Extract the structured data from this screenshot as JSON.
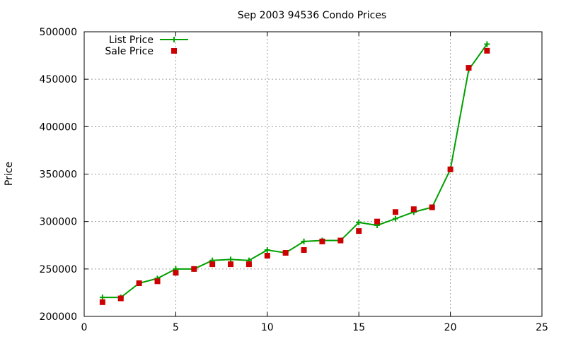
{
  "chart_data": {
    "type": "line",
    "title": "Sep 2003 94536 Condo Prices",
    "xlabel": "",
    "ylabel": "Price",
    "xlim": [
      0,
      25
    ],
    "ylim": [
      200000,
      500000
    ],
    "xticks": [
      0,
      5,
      10,
      15,
      20,
      25
    ],
    "yticks": [
      200000,
      250000,
      300000,
      350000,
      400000,
      450000,
      500000
    ],
    "grid": true,
    "legend_position": "top-left",
    "series": [
      {
        "name": "List Price",
        "style": "line+cross",
        "color": "#00a000",
        "x": [
          1,
          2,
          3,
          4,
          5,
          6,
          7,
          8,
          9,
          10,
          11,
          12,
          13,
          14,
          15,
          16,
          17,
          18,
          19,
          20,
          21,
          22
        ],
        "y": [
          220000,
          220000,
          235000,
          240000,
          250000,
          250000,
          259000,
          260000,
          259000,
          270000,
          267000,
          279000,
          280000,
          280000,
          299000,
          296000,
          303000,
          310000,
          315000,
          355000,
          460000,
          487000
        ]
      },
      {
        "name": "Sale Price",
        "style": "square",
        "color": "#cc0000",
        "x": [
          1,
          2,
          3,
          4,
          5,
          6,
          7,
          8,
          9,
          10,
          11,
          12,
          13,
          14,
          15,
          16,
          17,
          18,
          19,
          20,
          21,
          22
        ],
        "y": [
          215000,
          219000,
          235000,
          237000,
          246000,
          250000,
          255000,
          255000,
          255000,
          264000,
          267000,
          270000,
          279000,
          280000,
          290000,
          300000,
          310000,
          313000,
          315000,
          355000,
          462000,
          480000
        ]
      }
    ]
  }
}
